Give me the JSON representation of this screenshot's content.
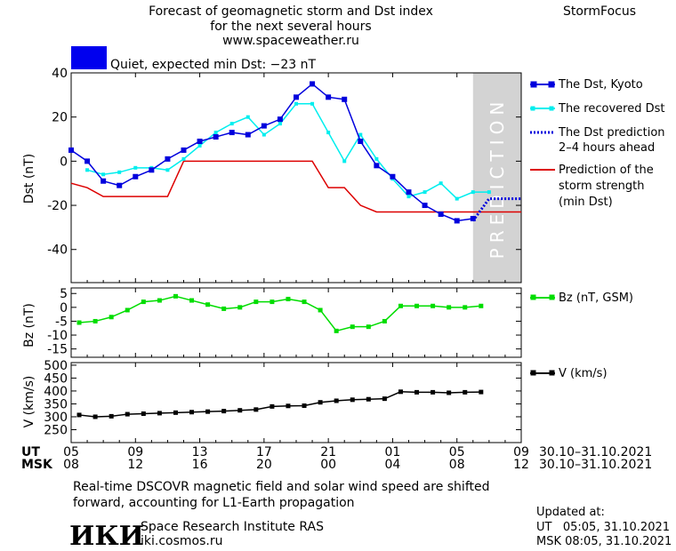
{
  "header": {
    "title_lines": [
      "Forecast of geomagnetic storm and Dst index",
      "for the next several hours",
      "www.spaceweather.ru"
    ],
    "brand": "StormFocus",
    "status_text": "Quiet, expected min Dst: −23 nT",
    "status_color": "#0000ee"
  },
  "legend": {
    "dst_kyoto": "The Dst, Kyoto",
    "dst_recovered": "The recovered Dst",
    "dst_prediction": [
      "The Dst prediction",
      "2–4 hours ahead"
    ],
    "storm_strength": [
      "Prediction of the",
      "storm strength",
      "(min Dst)"
    ],
    "bz": "Bz (nT, GSM)",
    "v": "V (km/s)"
  },
  "prediction_label": "PREDICTION",
  "axes": {
    "dst_ylabel": "Dst (nT)",
    "bz_ylabel": "Bz (nT)",
    "v_ylabel": "V (km/s)",
    "ut_label": "UT",
    "msk_label": "MSK",
    "ut_ticks": [
      "05",
      "09",
      "13",
      "17",
      "21",
      "01",
      "05",
      "09"
    ],
    "msk_ticks": [
      "08",
      "12",
      "16",
      "20",
      "00",
      "04",
      "08",
      "12"
    ],
    "date_range_ut": "30.10–31.10.2021",
    "date_range_msk": "30.10–31.10.2021"
  },
  "footer": {
    "note_lines": [
      "Real-time DSCOVR magnetic field and solar wind speed are shifted",
      "forward, accounting for L1-Earth propagation"
    ],
    "logo_text": "ИКИ",
    "institute": "Space Research Institute RAS",
    "site": "iki.cosmos.ru",
    "updated_label": "Updated at:",
    "updated_ut": "UT   05:05, 31.10.2021",
    "updated_msk": "MSK 08:05, 31.10.2021"
  },
  "colors": {
    "dst_kyoto": "#0000dd",
    "dst_recovered": "#00eeee",
    "dst_prediction": "#0000dd",
    "storm_strength": "#dd0000",
    "bz": "#00dd00",
    "v": "#000000",
    "prediction_band": "#d3d3d3"
  },
  "chart_data": [
    {
      "type": "line",
      "panel": "dst",
      "x_unit": "hours since 05 UT 30.10",
      "ylabel": "Dst (nT)",
      "ylim": [
        -55,
        40
      ],
      "yticks": [
        -40,
        -20,
        0,
        20,
        40
      ],
      "xlim": [
        0,
        28
      ],
      "prediction_band": [
        25,
        28
      ],
      "series": [
        {
          "name": "The Dst, Kyoto",
          "x": [
            0,
            1,
            2,
            3,
            4,
            5,
            6,
            7,
            8,
            9,
            10,
            11,
            12,
            13,
            14,
            15,
            16,
            17,
            18,
            19,
            20,
            21,
            22,
            23,
            24,
            25
          ],
          "values": [
            5,
            0,
            -9,
            -11,
            -7,
            -4,
            1,
            5,
            9,
            11,
            13,
            12,
            16,
            19,
            29,
            35,
            29,
            28,
            9,
            -2,
            -7,
            -14,
            -20,
            -24,
            -27,
            -26
          ]
        },
        {
          "name": "The recovered Dst",
          "x": [
            1,
            2,
            3,
            4,
            5,
            6,
            7,
            8,
            9,
            10,
            11,
            12,
            13,
            14,
            15,
            16,
            17,
            18,
            19,
            20,
            21,
            22,
            23,
            24,
            25,
            26
          ],
          "values": [
            -4,
            -6,
            -5,
            -3,
            -3,
            -4,
            1,
            7,
            13,
            17,
            20,
            12,
            17,
            26,
            26,
            13,
            0,
            12,
            1,
            -8,
            -16,
            -14,
            -10,
            -17,
            -14,
            -14
          ]
        },
        {
          "name": "The Dst prediction 2–4 hours ahead",
          "x": [
            25,
            26,
            27,
            28
          ],
          "values": [
            -27,
            -17,
            -17,
            -17
          ]
        },
        {
          "name": "Prediction of the storm strength (min Dst)",
          "x": [
            0,
            1,
            2,
            3,
            4,
            5,
            6,
            7,
            8,
            9,
            10,
            11,
            12,
            13,
            14,
            15,
            16,
            17,
            18,
            19,
            20,
            21,
            22,
            23,
            24,
            25,
            26,
            27,
            28
          ],
          "values": [
            -10,
            -12,
            -16,
            -16,
            -16,
            -16,
            -16,
            0,
            0,
            0,
            0,
            0,
            0,
            0,
            0,
            0,
            -12,
            -12,
            -20,
            -23,
            -23,
            -23,
            -23,
            -23,
            -23,
            -23,
            -23,
            -23,
            -23
          ],
          "step": true
        }
      ]
    },
    {
      "type": "line",
      "panel": "bz",
      "ylabel": "Bz (nT)",
      "ylim": [
        -18,
        7
      ],
      "yticks": [
        -15,
        -10,
        -5,
        0,
        5
      ],
      "series": [
        {
          "name": "Bz (nT, GSM)",
          "x": [
            0.5,
            1.5,
            2.5,
            3.5,
            4.5,
            5.5,
            6.5,
            7.5,
            8.5,
            9.5,
            10.5,
            11.5,
            12.5,
            13.5,
            14.5,
            15.5,
            16.5,
            17.5,
            18.5,
            19.5,
            20.5,
            21.5,
            22.5,
            23.5,
            24.5,
            25.5
          ],
          "values": [
            -5.5,
            -5,
            -3.5,
            -1,
            2,
            2.5,
            4,
            2.5,
            1,
            -0.5,
            0,
            2,
            2,
            3,
            2,
            -1,
            -8.5,
            -7,
            -7,
            -5,
            0.5,
            0.5,
            0.5,
            0,
            0,
            0.5
          ]
        }
      ]
    },
    {
      "type": "line",
      "panel": "v",
      "ylabel": "V (km/s)",
      "ylim": [
        200,
        510
      ],
      "yticks": [
        250,
        300,
        350,
        400,
        450,
        500
      ],
      "series": [
        {
          "name": "V (km/s)",
          "x": [
            0.5,
            1.5,
            2.5,
            3.5,
            4.5,
            5.5,
            6.5,
            7.5,
            8.5,
            9.5,
            10.5,
            11.5,
            12.5,
            13.5,
            14.5,
            15.5,
            16.5,
            17.5,
            18.5,
            19.5,
            20.5,
            21.5,
            22.5,
            23.5,
            24.5,
            25.5
          ],
          "values": [
            307,
            300,
            302,
            310,
            312,
            314,
            316,
            318,
            320,
            322,
            325,
            328,
            340,
            342,
            343,
            356,
            362,
            366,
            368,
            370,
            397,
            395,
            395,
            393,
            395,
            396
          ]
        }
      ]
    }
  ]
}
